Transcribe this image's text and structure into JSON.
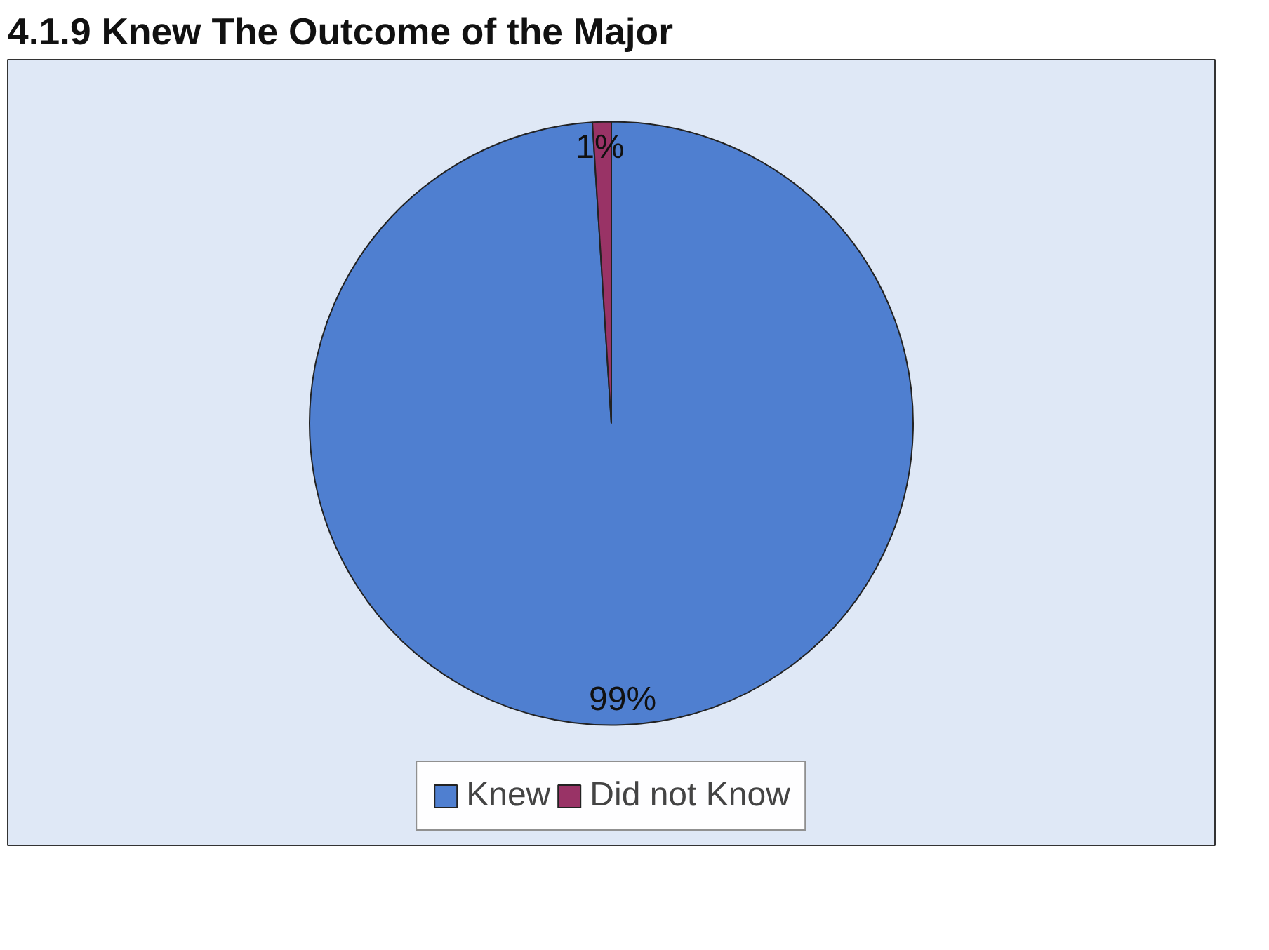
{
  "chart_data": {
    "type": "pie",
    "title": "4.1.9 Knew The Outcome of the Major",
    "categories": [
      "Knew",
      "Did not Know"
    ],
    "values": [
      99,
      1
    ],
    "colors": [
      "#4f7fd0",
      "#993366"
    ],
    "value_labels": [
      "99%",
      "1%"
    ],
    "legend": "bottom"
  }
}
